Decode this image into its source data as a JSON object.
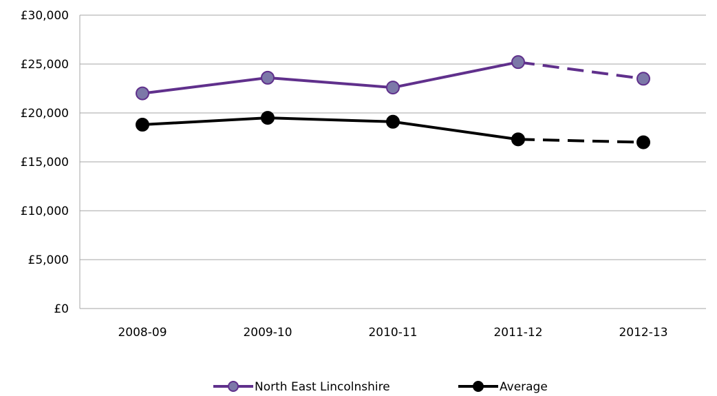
{
  "chart_data": {
    "type": "line",
    "categories": [
      "2008-09",
      "2009-10",
      "2010-11",
      "2011-12",
      "2012-13"
    ],
    "yticks": [
      "£0",
      "£5,000",
      "£10,000",
      "£15,000",
      "£20,000",
      "£25,000",
      "£30,000"
    ],
    "ylim": [
      0,
      30000
    ],
    "ystep": 5000,
    "grid": true,
    "legend_position": "bottom",
    "series": [
      {
        "name": "North East Lincolnshire",
        "values": [
          22000,
          23600,
          22600,
          25200,
          23500
        ],
        "line_color": "#60308c",
        "marker_color": "#7c78a8",
        "dashed_from_index": 3
      },
      {
        "name": "Average",
        "values": [
          18800,
          19500,
          19100,
          17300,
          17000
        ],
        "line_color": "#000000",
        "marker_color": "#000000",
        "dashed_from_index": 3
      }
    ]
  }
}
